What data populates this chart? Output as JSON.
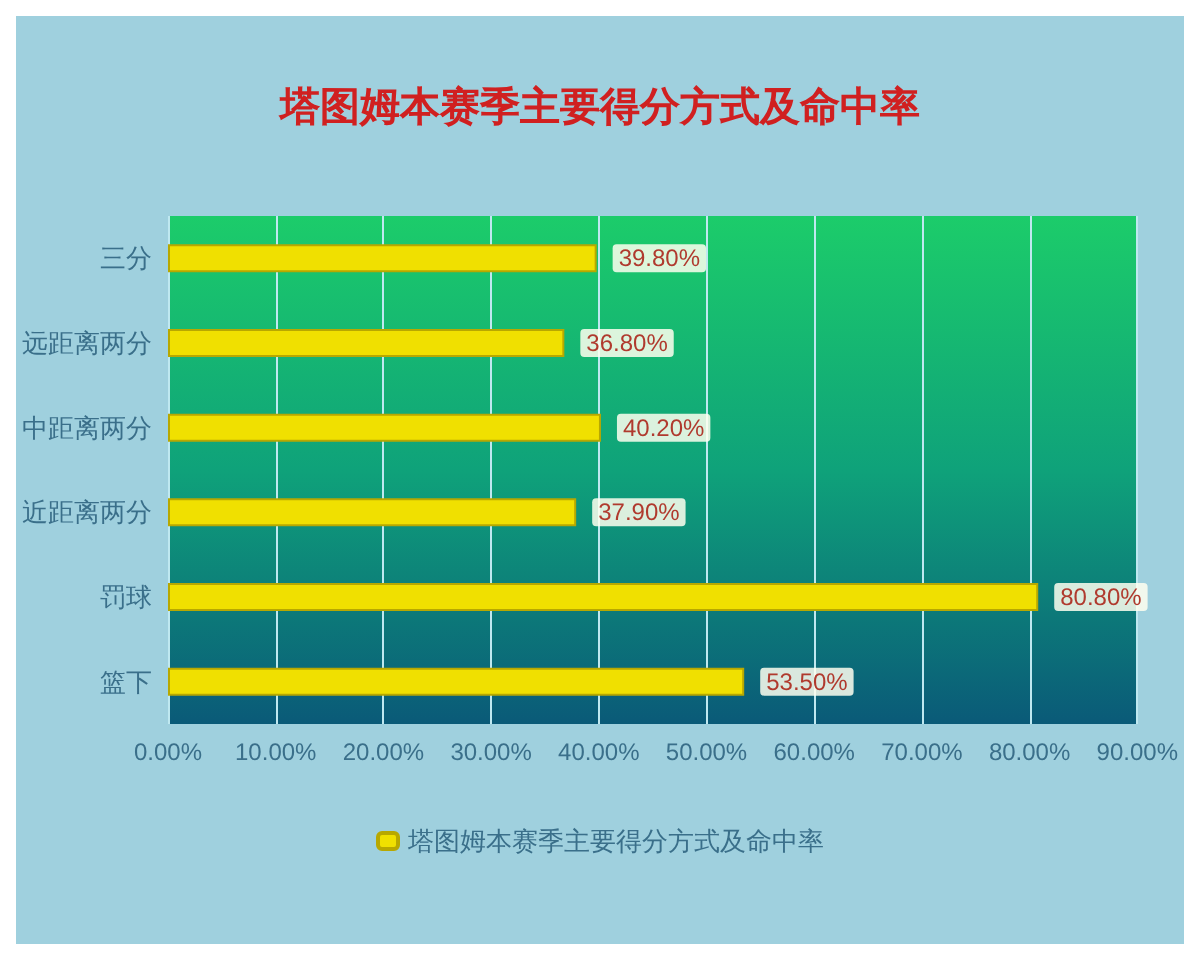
{
  "chart_data": {
    "type": "bar",
    "orientation": "horizontal",
    "title": "塔图姆本赛季主要得分方式及命中率",
    "categories": [
      "三分",
      "远距离两分",
      "中距离两分",
      "近距离两分",
      "罚球",
      "篮下"
    ],
    "series": [
      {
        "name": "塔图姆本赛季主要得分方式及命中率",
        "color": "#f0e000",
        "values": [
          39.8,
          36.8,
          40.2,
          37.9,
          80.8,
          53.5
        ]
      }
    ],
    "value_labels": [
      "39.80%",
      "36.80%",
      "40.20%",
      "37.90%",
      "80.80%",
      "53.50%"
    ],
    "xlim": [
      0,
      90
    ],
    "xticks": [
      {
        "value": 0,
        "label": "0.00%"
      },
      {
        "value": 10,
        "label": "10.00%"
      },
      {
        "value": 20,
        "label": "20.00%"
      },
      {
        "value": 30,
        "label": "30.00%"
      },
      {
        "value": 40,
        "label": "40.00%"
      },
      {
        "value": 50,
        "label": "50.00%"
      },
      {
        "value": 60,
        "label": "60.00%"
      },
      {
        "value": 70,
        "label": "70.00%"
      },
      {
        "value": 80,
        "label": "80.00%"
      },
      {
        "value": 90,
        "label": "90.00%"
      }
    ],
    "grid": "x",
    "legend": "bottom"
  }
}
